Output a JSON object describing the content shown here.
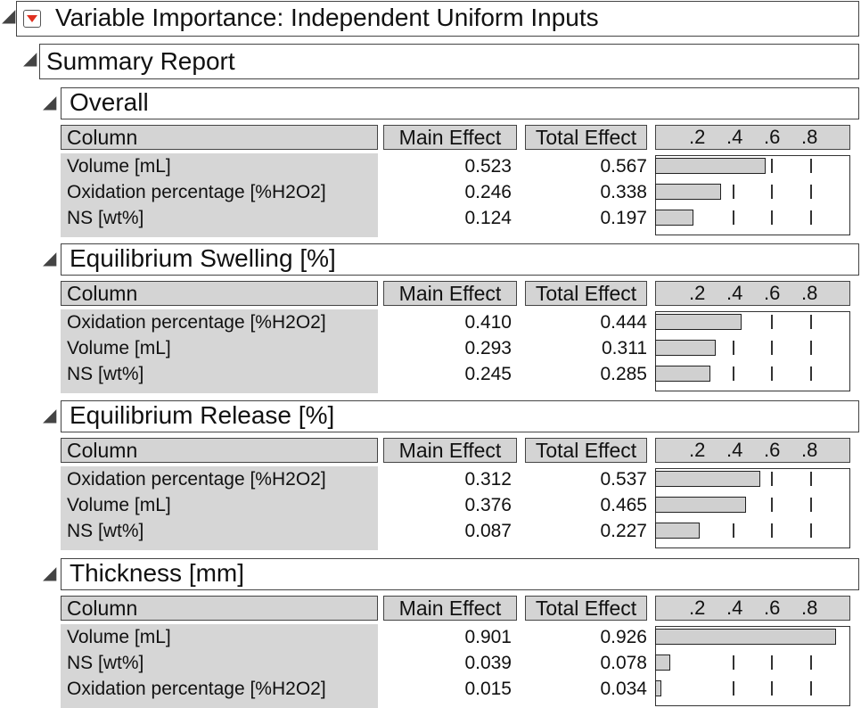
{
  "report": {
    "title": "Variable Importance: Independent Uniform Inputs",
    "summary_title": "Summary Report",
    "column_headers": {
      "column": "Column",
      "main": "Main Effect",
      "total": "Total Effect"
    },
    "axis_ticks": [
      ".2",
      ".4",
      ".6",
      ".8"
    ],
    "sections": [
      {
        "title": "Overall",
        "rows": [
          {
            "name": "Volume [mL]",
            "main": "0.523",
            "total": "0.567",
            "total_value": 0.567
          },
          {
            "name": "Oxidation percentage [%H2O2]",
            "main": "0.246",
            "total": "0.338",
            "total_value": 0.338
          },
          {
            "name": "NS [wt%]",
            "main": "0.124",
            "total": "0.197",
            "total_value": 0.197
          }
        ]
      },
      {
        "title": "Equilibrium Swelling [%]",
        "rows": [
          {
            "name": "Oxidation percentage [%H2O2]",
            "main": "0.410",
            "total": "0.444",
            "total_value": 0.444
          },
          {
            "name": "Volume [mL]",
            "main": "0.293",
            "total": "0.311",
            "total_value": 0.311
          },
          {
            "name": "NS [wt%]",
            "main": "0.245",
            "total": "0.285",
            "total_value": 0.285
          }
        ]
      },
      {
        "title": "Equilibrium Release [%]",
        "rows": [
          {
            "name": "Oxidation percentage [%H2O2]",
            "main": "0.312",
            "total": "0.537",
            "total_value": 0.537
          },
          {
            "name": "Volume [mL]",
            "main": "0.376",
            "total": "0.465",
            "total_value": 0.465
          },
          {
            "name": "NS [wt%]",
            "main": "0.087",
            "total": "0.227",
            "total_value": 0.227
          }
        ]
      },
      {
        "title": "Thickness [mm]",
        "rows": [
          {
            "name": "Volume [mL]",
            "main": "0.901",
            "total": "0.926",
            "total_value": 0.926
          },
          {
            "name": "NS [wt%]",
            "main": "0.039",
            "total": "0.078",
            "total_value": 0.078
          },
          {
            "name": "Oxidation percentage [%H2O2]",
            "main": "0.015",
            "total": "0.034",
            "total_value": 0.034
          }
        ]
      }
    ]
  }
}
